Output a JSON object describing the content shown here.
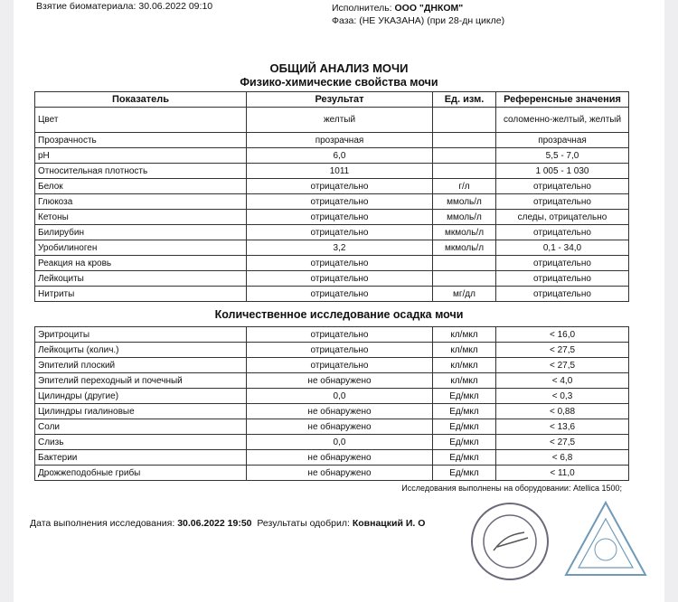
{
  "header": {
    "sample_label": "Взятие биоматериала:",
    "sample_value": "30.06.2022 09:10",
    "executor_label": "Исполнитель:",
    "executor_value": "ООО \"ДНКОМ\"",
    "phase": "Фаза: (НЕ УКАЗАНА) (при 28-дн цикле)"
  },
  "title": "ОБЩИЙ АНАЛИЗ МОЧИ",
  "section1": "Физико-химические свойства мочи",
  "columns": [
    "Показатель",
    "Результат",
    "Ед. изм.",
    "Референсные значения"
  ],
  "rows1": [
    [
      "Цвет",
      "желтый",
      "",
      "соломенно-желтый, желтый"
    ],
    [
      "Прозрачность",
      "прозрачная",
      "",
      "прозрачная"
    ],
    [
      "pH",
      "6,0",
      "",
      "5,5 - 7,0"
    ],
    [
      "Относительная плотность",
      "1011",
      "",
      "1 005 - 1 030"
    ],
    [
      "Белок",
      "отрицательно",
      "г/л",
      "отрицательно"
    ],
    [
      "Глюкоза",
      "отрицательно",
      "ммоль/л",
      "отрицательно"
    ],
    [
      "Кетоны",
      "отрицательно",
      "ммоль/л",
      "следы, отрицательно"
    ],
    [
      "Билирубин",
      "отрицательно",
      "мкмоль/л",
      "отрицательно"
    ],
    [
      "Уробилиноген",
      "3,2",
      "мкмоль/л",
      "0,1 - 34,0"
    ],
    [
      "Реакция на кровь",
      "отрицательно",
      "",
      "отрицательно"
    ],
    [
      "Лейкоциты",
      "отрицательно",
      "",
      "отрицательно"
    ],
    [
      "Нитриты",
      "отрицательно",
      "мг/дл",
      "отрицательно"
    ]
  ],
  "section2": "Количественное исследование осадка мочи",
  "rows2": [
    [
      "Эритроциты",
      "отрицательно",
      "кл/мкл",
      "< 16,0"
    ],
    [
      "Лейкоциты (колич.)",
      "отрицательно",
      "кл/мкл",
      "< 27,5"
    ],
    [
      "Эпителий плоский",
      "отрицательно",
      "кл/мкл",
      "< 27,5"
    ],
    [
      "Эпителий переходный и почечный",
      "не обнаружено",
      "кл/мкл",
      "< 4,0"
    ],
    [
      "Цилиндры (другие)",
      "0,0",
      "Ед/мкл",
      "< 0,3"
    ],
    [
      "Цилиндры гиалиновые",
      "не обнаружено",
      "Ед/мкл",
      "< 0,88"
    ],
    [
      "Соли",
      "не обнаружено",
      "Ед/мкл",
      "< 13,6"
    ],
    [
      "Слизь",
      "0,0",
      "Ед/мкл",
      "< 27,5"
    ],
    [
      "Бактерии",
      "не обнаружено",
      "Ед/мкл",
      "< 6,8"
    ],
    [
      "Дрожжеподобные грибы",
      "не обнаружено",
      "Ед/мкл",
      "< 11,0"
    ]
  ],
  "equipment": "Исследования выполнены на оборудовании: Atellica 1500;",
  "footer": {
    "date_label": "Дата выполнения исследования:",
    "date_value": "30.06.2022 19:50",
    "approved_label": "Результаты одобрил:",
    "approved_value": "Ковнацкий И. О"
  },
  "stamps": {
    "round": "Иван Олегович Ковнацкий • ВРАЧ КДЛ",
    "triangle": "ООО ДНКОМ • ДЛЯ АНАЛИЗОВ • ЛАБОРАТОРИЯ"
  }
}
